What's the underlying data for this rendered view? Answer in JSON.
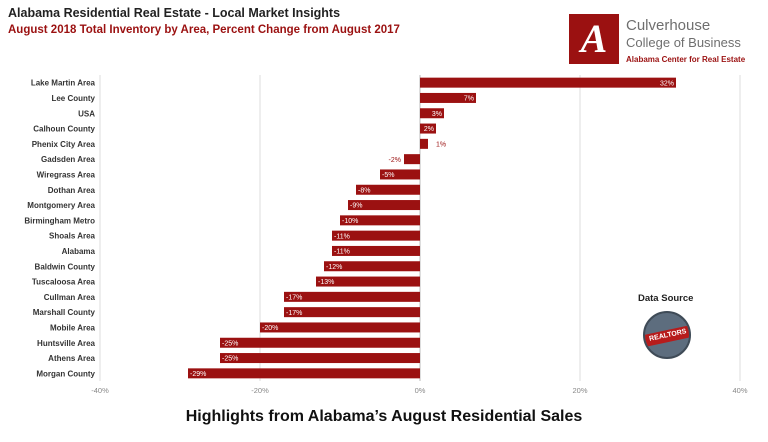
{
  "header": {
    "title": "Alabama Residential Real Estate - Local Market Insights",
    "subtitle": "August 2018 Total Inventory by Area, Percent Change from August 2017"
  },
  "branding": {
    "logo_letter": "A",
    "line1": "Culverhouse",
    "line2": "College of Business",
    "line3": "Alabama Center for Real Estate"
  },
  "data_source": {
    "label": "Data Source",
    "badge_text": "REALTORS"
  },
  "footer": {
    "text": "Highlights from Alabama’s August Residential Sales"
  },
  "colors": {
    "bar": "#9b1111",
    "label_text": "#ffffff",
    "outside_label": "#9b1111",
    "grid": "#dddddd"
  },
  "chart_data": {
    "type": "bar",
    "orientation": "horizontal",
    "categories": [
      "Lake Martin Area",
      "Lee County",
      "USA",
      "Calhoun County",
      "Phenix City Area",
      "Gadsden Area",
      "Wiregrass Area",
      "Dothan Area",
      "Montgomery Area",
      "Birmingham Metro",
      "Shoals Area",
      "Alabama",
      "Baldwin County",
      "Tuscaloosa Area",
      "Cullman Area",
      "Marshall County",
      "Mobile Area",
      "Huntsville Area",
      "Athens Area",
      "Morgan County"
    ],
    "values": [
      32,
      7,
      3,
      2,
      1,
      -2,
      -5,
      -8,
      -9,
      -10,
      -11,
      -11,
      -12,
      -13,
      -17,
      -17,
      -20,
      -25,
      -25,
      -29
    ],
    "value_labels": [
      "32%",
      "7%",
      "3%",
      "2%",
      "1%",
      "-2%",
      "-5%",
      "-8%",
      "-9%",
      "-10%",
      "-11%",
      "-11%",
      "-12%",
      "-13%",
      "-17%",
      "-17%",
      "-20%",
      "-25%",
      "-25%",
      "-29%"
    ],
    "xlim": [
      -40,
      40
    ],
    "x_ticks": [
      -40,
      -20,
      0,
      20,
      40
    ],
    "x_tick_labels": [
      "-40%",
      "-20%",
      "0%",
      "20%",
      "40%"
    ],
    "grid": true
  }
}
